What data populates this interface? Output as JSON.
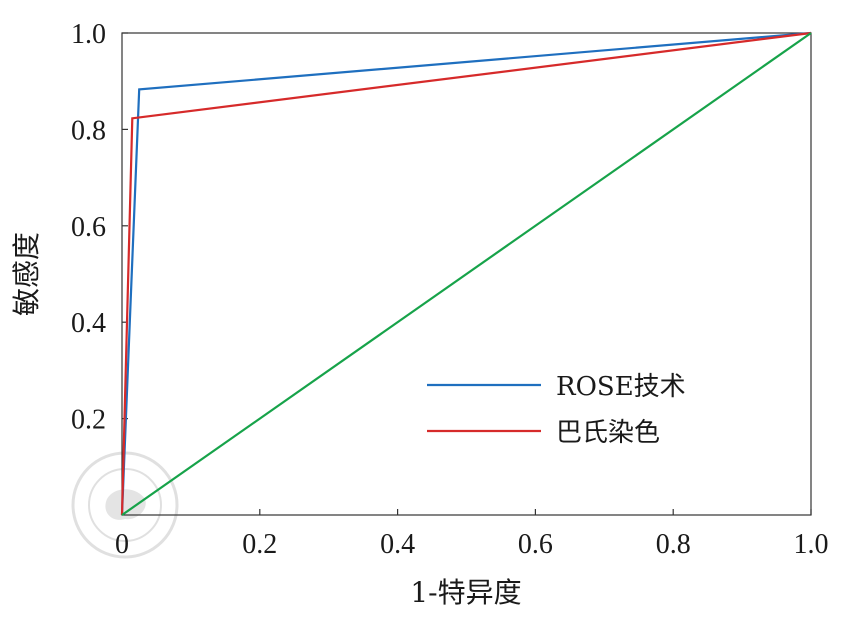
{
  "chart_data": {
    "type": "line",
    "xlabel": "1-特异度",
    "ylabel": "敏感度",
    "xlim": [
      0,
      1
    ],
    "ylim": [
      0,
      1
    ],
    "x_ticks": [
      "0",
      "0.2",
      "0.4",
      "0.6",
      "0.8",
      "1.0"
    ],
    "y_ticks": [
      "0.2",
      "0.4",
      "0.6",
      "0.8",
      "1.0"
    ],
    "grid": false,
    "legend_position": "bottom-right",
    "series": [
      {
        "name": "ROSE技术",
        "color": "#1f6fbf",
        "points": [
          [
            0,
            0
          ],
          [
            0.025,
            0.883
          ],
          [
            1.0,
            1.0
          ]
        ]
      },
      {
        "name": "巴氏染色",
        "color": "#d62a2a",
        "points": [
          [
            0,
            0
          ],
          [
            0.015,
            0.823
          ],
          [
            1.0,
            1.0
          ]
        ]
      },
      {
        "color": "#17a34a",
        "points": [
          [
            0,
            0
          ],
          [
            1.0,
            1.0
          ]
        ]
      }
    ]
  }
}
